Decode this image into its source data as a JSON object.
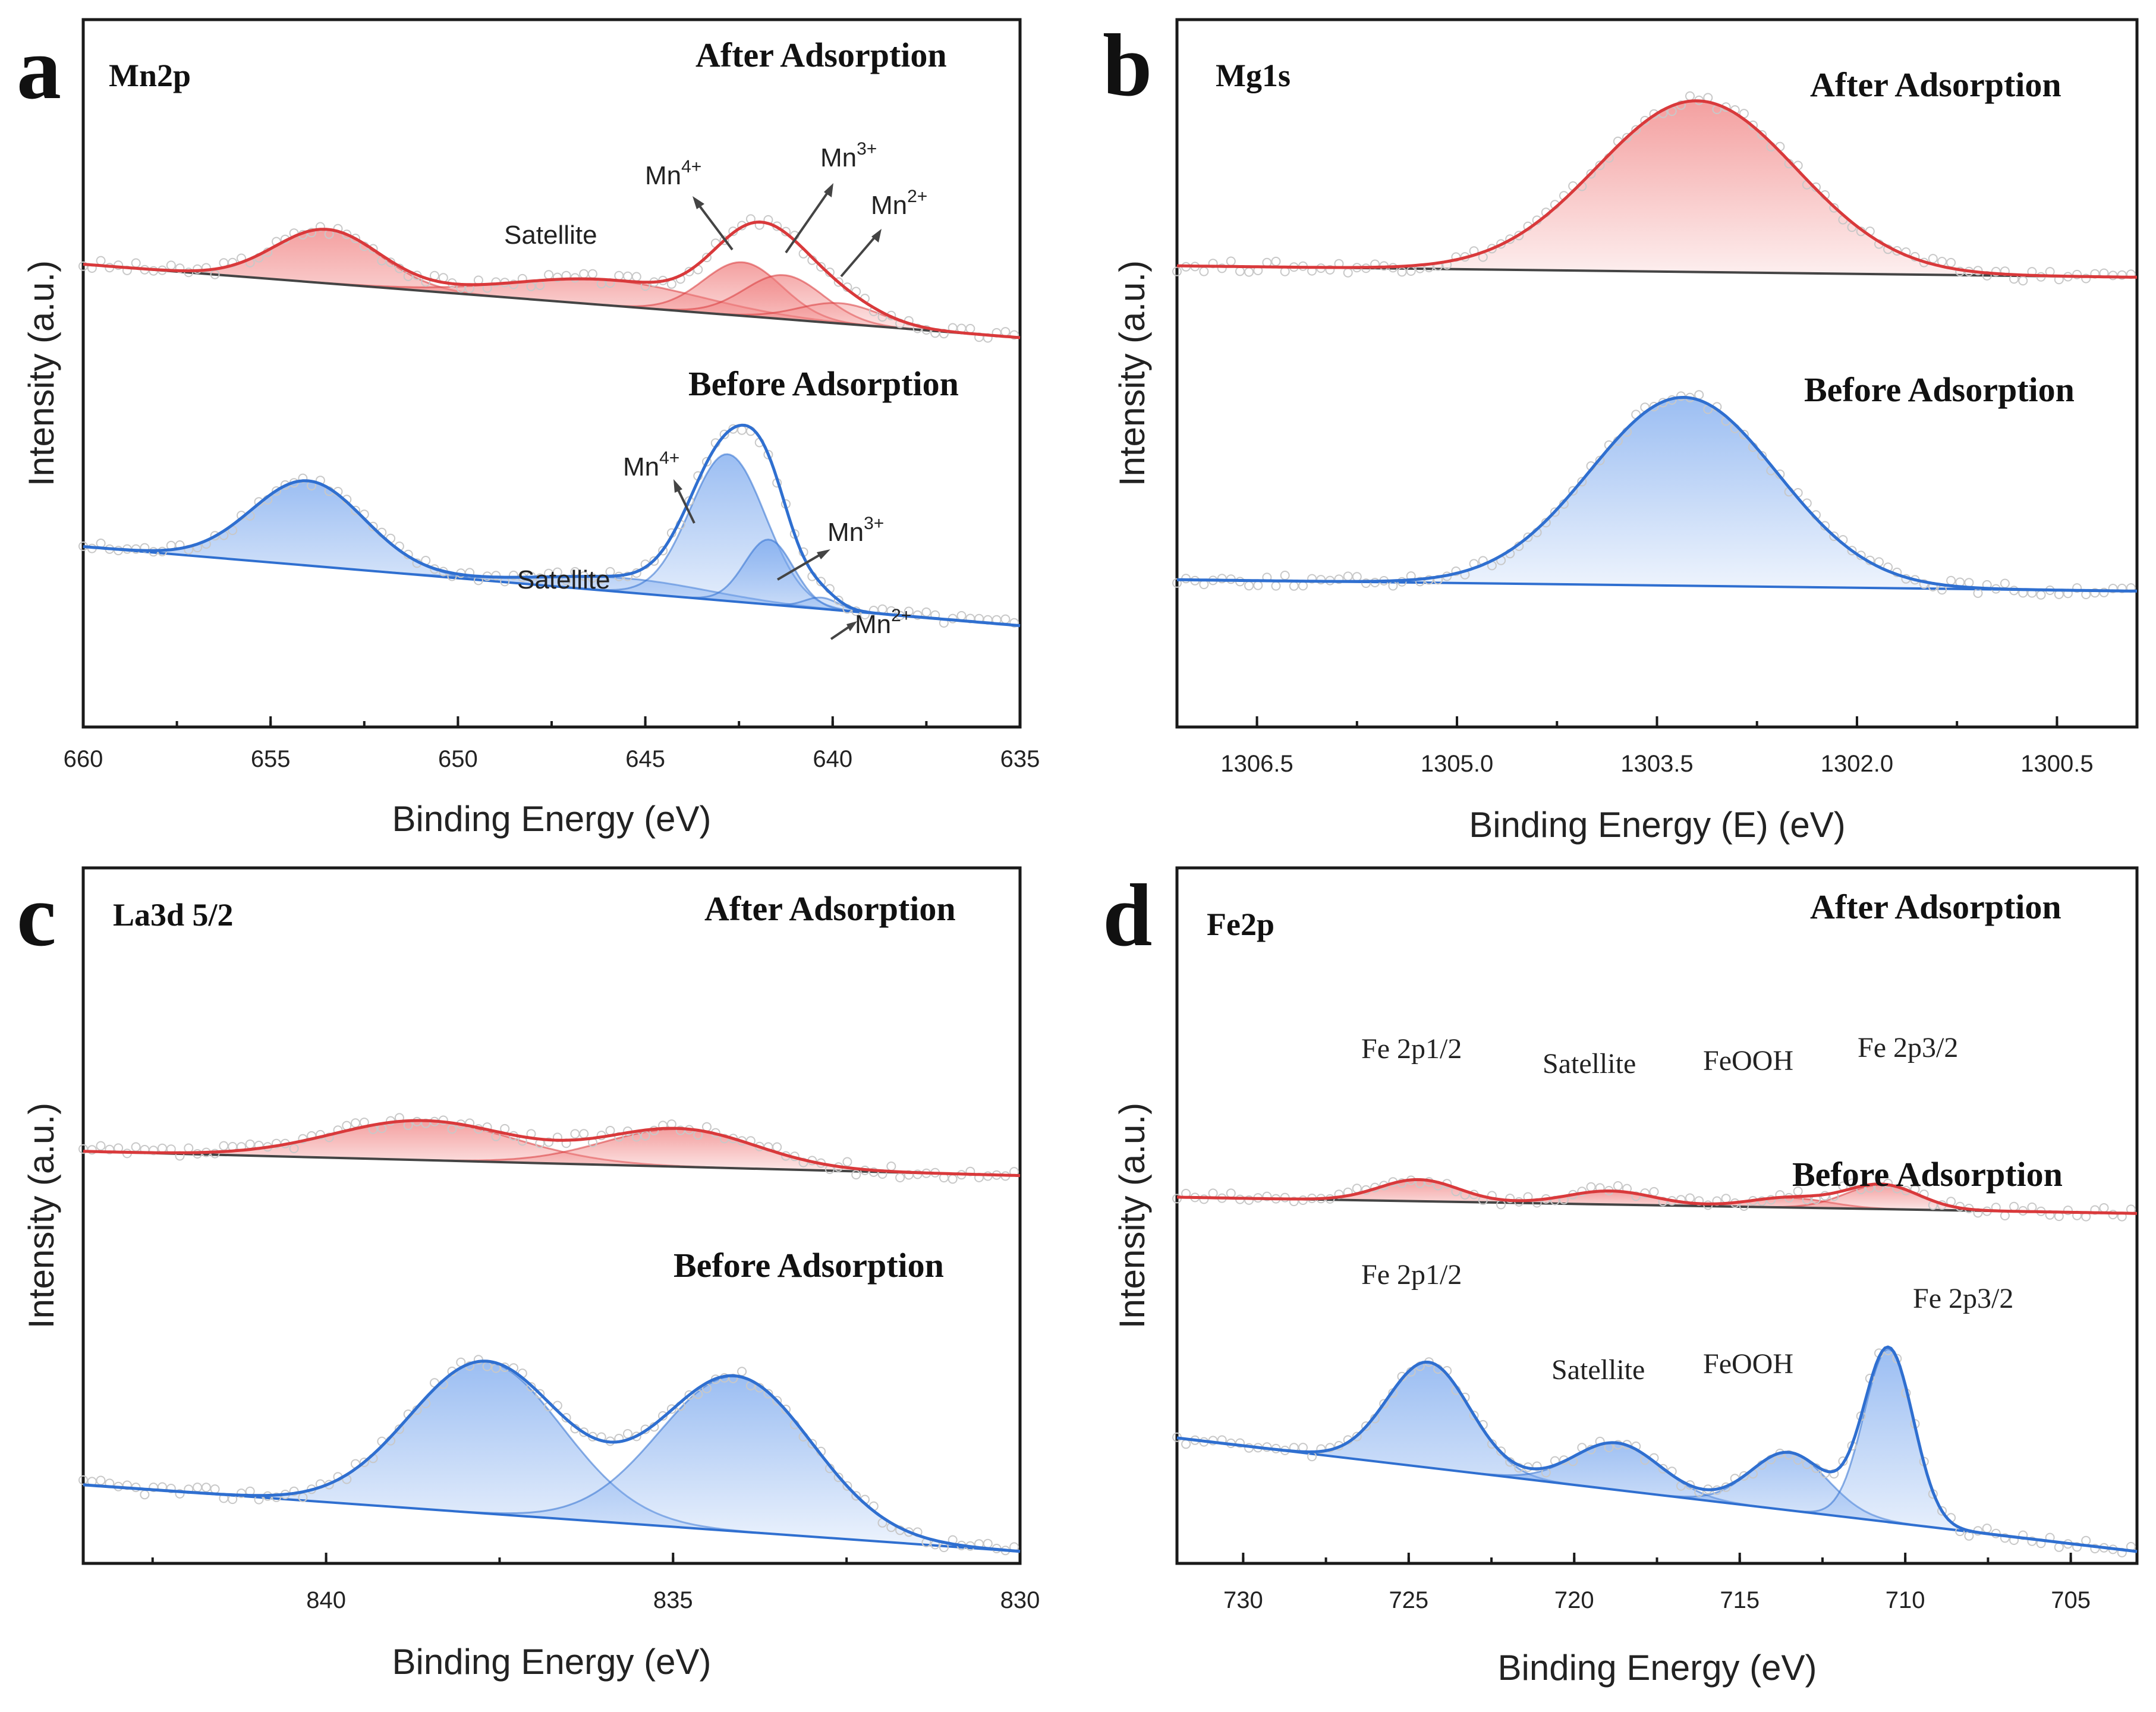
{
  "colors": {
    "after": "#d9393b",
    "after_fill": "#f08080",
    "before": "#2f6fd0",
    "before_fill": "#7aa8ee",
    "scatter": "#c8c8c8",
    "frame": "#1a1a1a"
  },
  "chart_data": [
    {
      "panel": "a",
      "type": "line",
      "element": "Mn2p",
      "xlabel": "Binding Energy (eV)",
      "ylabel": "Intensity (a.u.)",
      "xlim": [
        660,
        635
      ],
      "xticks": [
        "660",
        "655",
        "650",
        "645",
        "640",
        "635"
      ],
      "ylim": [
        0,
        1
      ],
      "series": [
        {
          "name": "After Adsorption",
          "baseline": [
            0.69,
            0.56
          ],
          "peaks": [
            {
              "label": "",
              "center": 653.5,
              "height": 0.095,
              "width": 1.4
            },
            {
              "label": "Satellite",
              "center": 646.0,
              "height": 0.045,
              "width": 2.5
            },
            {
              "label": "Mn4+",
              "center": 642.4,
              "height": 0.095,
              "width": 1.05
            },
            {
              "label": "Mn3+",
              "center": 641.3,
              "height": 0.078,
              "width": 1.05
            },
            {
              "label": "Mn2+",
              "center": 639.8,
              "height": 0.036,
              "width": 1.1
            }
          ]
        },
        {
          "name": "Before Adsorption",
          "baseline": [
            0.19,
            0.05
          ],
          "peaks": [
            {
              "label": "",
              "center": 654.0,
              "height": 0.15,
              "width": 1.5
            },
            {
              "label": "Satellite",
              "center": 645.5,
              "height": 0.025,
              "width": 2.2
            },
            {
              "label": "Mn4+",
              "center": 642.8,
              "height": 0.26,
              "width": 1.0
            },
            {
              "label": "Mn3+",
              "center": 641.7,
              "height": 0.115,
              "width": 0.65
            },
            {
              "label": "Mn2+",
              "center": 640.3,
              "height": 0.02,
              "width": 0.45
            }
          ]
        }
      ]
    },
    {
      "panel": "b",
      "type": "line",
      "element": "Mg1s",
      "xlabel": "Binding Energy (E) (eV)",
      "ylabel": "Intensity (a.u.)",
      "xlim": [
        1307.1,
        1299.9
      ],
      "xticks": [
        "1306.5",
        "1305.0",
        "1303.5",
        "1302.0",
        "1300.5"
      ],
      "ylim": [
        0,
        1
      ],
      "series": [
        {
          "name": "After Adsorption",
          "baseline": [
            0.68,
            0.66
          ],
          "peaks": [
            {
              "label": "",
              "center": 1303.2,
              "height": 0.3,
              "width": 0.75
            }
          ]
        },
        {
          "name": "Before Adsorption",
          "baseline": [
            0.13,
            0.11
          ],
          "peaks": [
            {
              "label": "",
              "center": 1303.3,
              "height": 0.33,
              "width": 0.7
            }
          ]
        }
      ]
    },
    {
      "panel": "c",
      "type": "line",
      "element": "La3d 5/2",
      "xlabel": "Binding Energy (eV)",
      "ylabel": "Intensity (a.u.)",
      "xlim": [
        843.5,
        830
      ],
      "xticks": [
        "840",
        "835",
        "830"
      ],
      "ylim": [
        0,
        1
      ],
      "series": [
        {
          "name": "After Adsorption",
          "baseline": [
            0.66,
            0.62
          ],
          "peaks": [
            {
              "label": "",
              "center": 838.6,
              "height": 0.065,
              "width": 1.3
            },
            {
              "label": "",
              "center": 834.9,
              "height": 0.062,
              "width": 1.1
            }
          ]
        },
        {
          "name": "Before Adsorption",
          "baseline": [
            0.11,
            0.0
          ],
          "peaks": [
            {
              "label": "",
              "center": 837.7,
              "height": 0.25,
              "width": 1.1
            },
            {
              "label": "",
              "center": 834.1,
              "height": 0.255,
              "width": 1.1
            }
          ]
        }
      ]
    },
    {
      "panel": "d",
      "type": "line",
      "element": "Fe2p",
      "xlabel": "Binding Energy (eV)",
      "ylabel": "Intensity (a.u.)",
      "xlim": [
        732,
        703
      ],
      "xticks": [
        "730",
        "725",
        "720",
        "715",
        "710",
        "705"
      ],
      "ylim": [
        0,
        1
      ],
      "series": [
        {
          "name": "After Adsorption",
          "baseline": [
            0.655,
            0.625
          ],
          "peaks": [
            {
              "label": "Fe 2p1/2",
              "center": 724.7,
              "height": 0.04,
              "width": 1.2
            },
            {
              "label": "Satellite",
              "center": 718.9,
              "height": 0.025,
              "width": 1.3
            },
            {
              "label": "FeOOH",
              "center": 713.5,
              "height": 0.018,
              "width": 1.2
            },
            {
              "label": "Fe 2p3/2",
              "center": 710.7,
              "height": 0.045,
              "width": 1.1
            }
          ]
        },
        {
          "name": "Before Adsorption",
          "baseline": [
            0.21,
            0.0
          ],
          "peaks": [
            {
              "label": "Fe 2p1/2",
              "center": 724.4,
              "height": 0.195,
              "width": 1.25
            },
            {
              "label": "Satellite",
              "center": 718.7,
              "height": 0.087,
              "width": 1.3
            },
            {
              "label": "FeOOH",
              "center": 713.5,
              "height": 0.107,
              "width": 1.15
            },
            {
              "label": "Fe 2p3/2",
              "center": 710.5,
              "height": 0.32,
              "width": 0.75
            }
          ]
        }
      ]
    }
  ]
}
